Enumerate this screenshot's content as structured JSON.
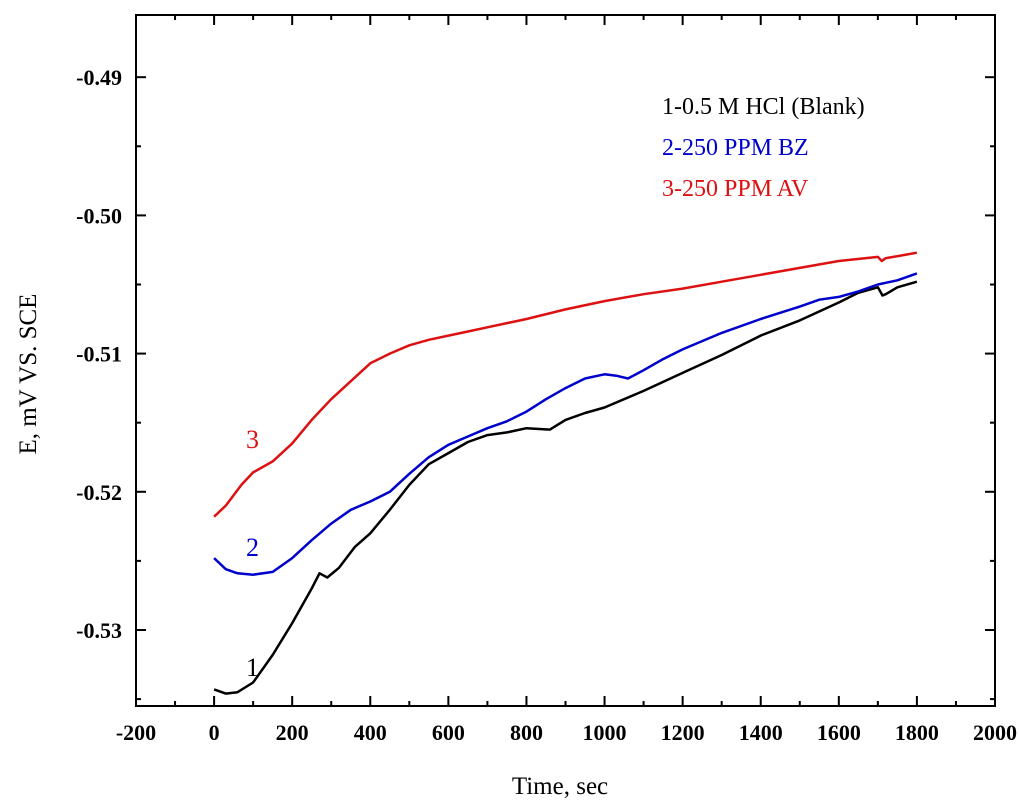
{
  "chart_data": {
    "type": "line",
    "title": "",
    "xlabel": "Time, sec",
    "ylabel": "E, mV VS. SCE",
    "xlim": [
      -200,
      2000
    ],
    "ylim": [
      -0.5355,
      -0.4855
    ],
    "x_ticks": [
      -200,
      0,
      200,
      400,
      600,
      800,
      1000,
      1200,
      1400,
      1600,
      1800,
      2000
    ],
    "x_tick_labels": [
      "-200",
      "0",
      "200",
      "400",
      "600",
      "800",
      "1000",
      "1200",
      "1400",
      "1600",
      "1800",
      "2000"
    ],
    "y_ticks": [
      -0.53,
      -0.52,
      -0.51,
      -0.5,
      -0.49
    ],
    "y_tick_labels": [
      "-0.53",
      "-0.52",
      "-0.51",
      "-0.50",
      "-0.49"
    ],
    "grid": false,
    "legend_position": "top-right",
    "legend": [
      "1-0.5 M HCl (Blank)",
      "2-250 PPM BZ",
      "3-250 PPM AV"
    ],
    "series": [
      {
        "label": "1",
        "color": "#000000",
        "points": [
          [
            0,
            -0.5343
          ],
          [
            30,
            -0.5346
          ],
          [
            60,
            -0.5345
          ],
          [
            100,
            -0.5338
          ],
          [
            150,
            -0.5318
          ],
          [
            200,
            -0.5295
          ],
          [
            250,
            -0.527
          ],
          [
            270,
            -0.5259
          ],
          [
            290,
            -0.5262
          ],
          [
            320,
            -0.5255
          ],
          [
            360,
            -0.524
          ],
          [
            400,
            -0.523
          ],
          [
            450,
            -0.5213
          ],
          [
            500,
            -0.5195
          ],
          [
            550,
            -0.518
          ],
          [
            600,
            -0.5172
          ],
          [
            650,
            -0.5164
          ],
          [
            700,
            -0.5159
          ],
          [
            750,
            -0.5157
          ],
          [
            800,
            -0.5154
          ],
          [
            860,
            -0.5155
          ],
          [
            900,
            -0.5148
          ],
          [
            950,
            -0.5143
          ],
          [
            1000,
            -0.5139
          ],
          [
            1100,
            -0.5127
          ],
          [
            1200,
            -0.5114
          ],
          [
            1300,
            -0.5101
          ],
          [
            1400,
            -0.5087
          ],
          [
            1500,
            -0.5076
          ],
          [
            1600,
            -0.5063
          ],
          [
            1650,
            -0.5056
          ],
          [
            1700,
            -0.5052
          ],
          [
            1712,
            -0.5058
          ],
          [
            1720,
            -0.5057
          ],
          [
            1750,
            -0.5052
          ],
          [
            1800,
            -0.5048
          ]
        ]
      },
      {
        "label": "2",
        "color": "#0000cc",
        "points": [
          [
            0,
            -0.5248
          ],
          [
            30,
            -0.5256
          ],
          [
            60,
            -0.5259
          ],
          [
            100,
            -0.526
          ],
          [
            150,
            -0.5258
          ],
          [
            200,
            -0.5248
          ],
          [
            250,
            -0.5235
          ],
          [
            300,
            -0.5223
          ],
          [
            350,
            -0.5213
          ],
          [
            400,
            -0.5207
          ],
          [
            450,
            -0.52
          ],
          [
            500,
            -0.5187
          ],
          [
            550,
            -0.5175
          ],
          [
            600,
            -0.5166
          ],
          [
            650,
            -0.516
          ],
          [
            700,
            -0.5154
          ],
          [
            750,
            -0.5149
          ],
          [
            800,
            -0.5142
          ],
          [
            850,
            -0.5133
          ],
          [
            900,
            -0.5125
          ],
          [
            950,
            -0.5118
          ],
          [
            1000,
            -0.5115
          ],
          [
            1030,
            -0.5116
          ],
          [
            1060,
            -0.5118
          ],
          [
            1100,
            -0.5112
          ],
          [
            1150,
            -0.5104
          ],
          [
            1200,
            -0.5097
          ],
          [
            1300,
            -0.5085
          ],
          [
            1400,
            -0.5075
          ],
          [
            1500,
            -0.5066
          ],
          [
            1550,
            -0.5061
          ],
          [
            1600,
            -0.5059
          ],
          [
            1650,
            -0.5055
          ],
          [
            1700,
            -0.505
          ],
          [
            1750,
            -0.5047
          ],
          [
            1800,
            -0.5042
          ]
        ]
      },
      {
        "label": "3",
        "color": "#dd1111",
        "points": [
          [
            0,
            -0.5218
          ],
          [
            30,
            -0.521
          ],
          [
            70,
            -0.5195
          ],
          [
            100,
            -0.5186
          ],
          [
            150,
            -0.5178
          ],
          [
            200,
            -0.5165
          ],
          [
            250,
            -0.5148
          ],
          [
            300,
            -0.5133
          ],
          [
            350,
            -0.512
          ],
          [
            400,
            -0.5107
          ],
          [
            450,
            -0.51
          ],
          [
            500,
            -0.5094
          ],
          [
            550,
            -0.509
          ],
          [
            600,
            -0.5087
          ],
          [
            650,
            -0.5084
          ],
          [
            700,
            -0.5081
          ],
          [
            800,
            -0.5075
          ],
          [
            900,
            -0.5068
          ],
          [
            1000,
            -0.5062
          ],
          [
            1100,
            -0.5057
          ],
          [
            1200,
            -0.5053
          ],
          [
            1300,
            -0.5048
          ],
          [
            1400,
            -0.5043
          ],
          [
            1500,
            -0.5038
          ],
          [
            1600,
            -0.5033
          ],
          [
            1700,
            -0.503
          ],
          [
            1710,
            -0.5033
          ],
          [
            1720,
            -0.5031
          ],
          [
            1760,
            -0.5029
          ],
          [
            1800,
            -0.5027
          ]
        ]
      }
    ]
  }
}
